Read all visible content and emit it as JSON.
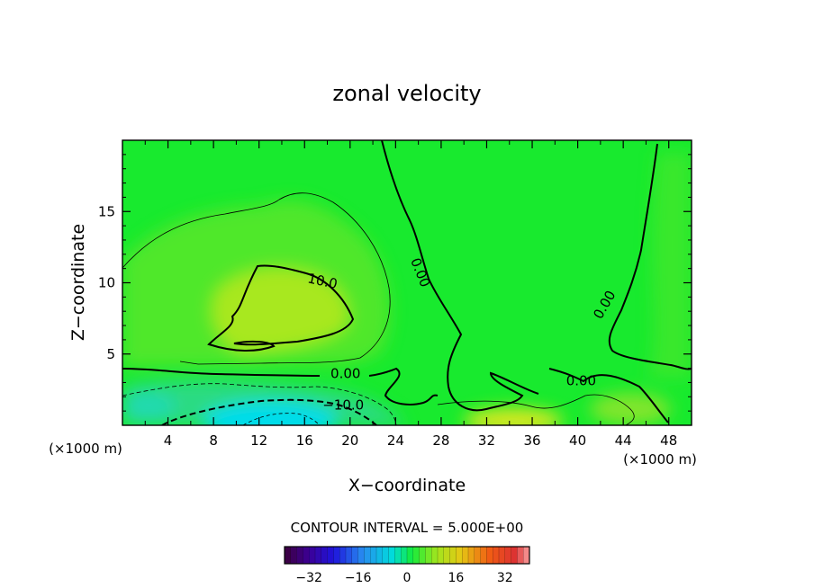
{
  "chart_data": {
    "type": "heatmap",
    "title": "zonal velocity",
    "xlabel": "X−coordinate",
    "ylabel": "Z−coordinate",
    "x_unit_left": "(×1000 m)",
    "x_unit_right": "(×1000 m)",
    "xlim": [
      0,
      50
    ],
    "ylim": [
      0,
      20
    ],
    "xticks": [
      4,
      8,
      12,
      16,
      20,
      24,
      28,
      32,
      36,
      40,
      44,
      48
    ],
    "xtick_labels": [
      "4",
      "8",
      "12",
      "16",
      "20",
      "24",
      "28",
      "32",
      "36",
      "40",
      "44",
      "48"
    ],
    "yticks": [
      5,
      10,
      15
    ],
    "ytick_labels": [
      "5",
      "10",
      "15"
    ],
    "contour_interval_text": "CONTOUR INTERVAL = 5.000E+00",
    "contour_labels": [
      {
        "text": "10.0",
        "x": 17.5,
        "y": 9.8,
        "rotate": 12
      },
      {
        "text": "0.00",
        "x": 25.8,
        "y": 10.6,
        "rotate": 68
      },
      {
        "text": "0.00",
        "x": 42.7,
        "y": 8.3,
        "rotate": -60
      },
      {
        "text": "0.00",
        "x": 19.6,
        "y": 3.3,
        "rotate": 0
      },
      {
        "text": "0.00",
        "x": 40.3,
        "y": 2.8,
        "rotate": 0
      },
      {
        "text": "−10.0",
        "x": 19.4,
        "y": 1.1,
        "rotate": 0
      }
    ],
    "colorbar": {
      "min": -40,
      "max": 40,
      "tick_values": [
        -32,
        -16,
        0,
        16,
        32
      ],
      "tick_labels": [
        "−32",
        "−16",
        "0",
        "16",
        "32"
      ]
    },
    "field_samples": [
      {
        "x": 14,
        "z": 8.5,
        "u": 11
      },
      {
        "x": 9,
        "z": 9,
        "u": 8
      },
      {
        "x": 16,
        "z": 13,
        "u": 6
      },
      {
        "x": 4,
        "z": 13,
        "u": 4
      },
      {
        "x": 30,
        "z": 12,
        "u": 0
      },
      {
        "x": 40,
        "z": 15,
        "u": 0
      },
      {
        "x": 48,
        "z": 10,
        "u": 3
      },
      {
        "x": 13.5,
        "z": 0.3,
        "u": -14
      },
      {
        "x": 34,
        "z": 0.4,
        "u": 9
      },
      {
        "x": 45,
        "z": 1,
        "u": 4
      },
      {
        "x": 5,
        "z": 1,
        "u": -7
      }
    ]
  }
}
